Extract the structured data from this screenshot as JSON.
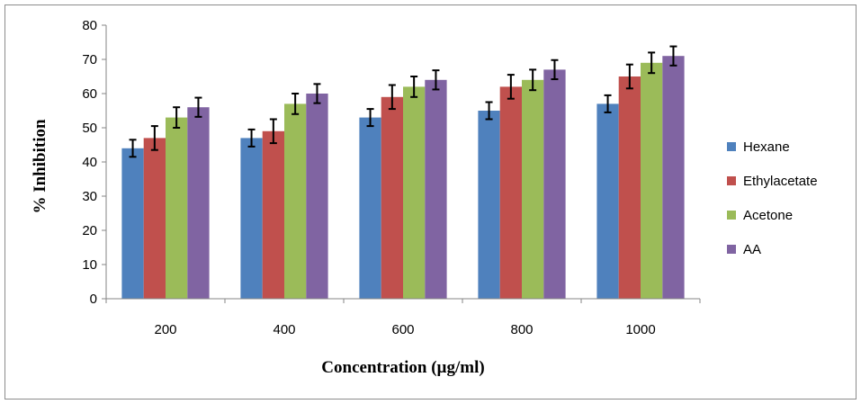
{
  "chart_data": {
    "type": "bar",
    "title": "",
    "xlabel": "Concentration (µg/ml)",
    "ylabel": "% Inhibition",
    "ylim": [
      0,
      80
    ],
    "yticks": [
      "0",
      "10",
      "20",
      "30",
      "40",
      "50",
      "60",
      "70",
      "80"
    ],
    "categories": [
      "200",
      "400",
      "600",
      "800",
      "1000"
    ],
    "grid": false,
    "legend_position": "right",
    "series": [
      {
        "name": "Hexane",
        "color": "#4f81bd",
        "values": [
          44,
          47,
          53,
          55,
          57
        ],
        "errors": [
          2.5,
          2.5,
          2.5,
          2.5,
          2.5
        ]
      },
      {
        "name": "Ethylacetate",
        "color": "#c0504d",
        "values": [
          47,
          49,
          59,
          62,
          65
        ],
        "errors": [
          3.5,
          3.5,
          3.5,
          3.5,
          3.5
        ]
      },
      {
        "name": "Acetone",
        "color": "#9bbb59",
        "values": [
          53,
          57,
          62,
          64,
          69
        ],
        "errors": [
          3,
          3,
          3,
          3,
          3
        ]
      },
      {
        "name": "AA",
        "color": "#8064a2",
        "values": [
          56,
          60,
          64,
          67,
          71
        ],
        "errors": [
          2.8,
          2.8,
          2.8,
          2.8,
          2.8
        ]
      }
    ]
  }
}
